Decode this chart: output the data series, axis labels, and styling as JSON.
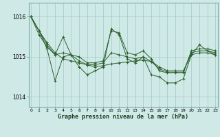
{
  "title": "Graphe pression niveau de la mer (hPa)",
  "bg_color": "#cfe9e7",
  "grid_color": "#a0c8c5",
  "line_color": "#2a5e2a",
  "spine_color": "#7aaba8",
  "xlim": [
    -0.5,
    23.5
  ],
  "ylim": [
    1013.75,
    1016.35
  ],
  "yticks": [
    1014,
    1015,
    1016
  ],
  "xticks": [
    0,
    1,
    2,
    3,
    4,
    5,
    6,
    7,
    8,
    9,
    10,
    11,
    12,
    13,
    14,
    15,
    16,
    17,
    18,
    19,
    20,
    21,
    22,
    23
  ],
  "series": [
    [
      1016.0,
      1015.65,
      1015.2,
      1014.4,
      1015.05,
      1015.05,
      1014.75,
      1014.6,
      1014.7,
      1014.8,
      1015.7,
      1015.55,
      1015.0,
      1014.95,
      1015.05,
      1014.6,
      1014.5,
      1014.4,
      1014.4,
      1014.5,
      1015.1,
      1015.35,
      1015.2,
      1015.1
    ],
    [
      1016.0,
      1015.65,
      1015.35,
      1015.05,
      1015.5,
      1015.05,
      1015.0,
      1014.85,
      1014.85,
      1014.9,
      1015.7,
      1015.6,
      1015.1,
      1015.05,
      1015.2,
      1015.0,
      1014.7,
      1014.65,
      1014.65,
      1014.65,
      1015.15,
      1015.2,
      1015.2,
      1015.15
    ],
    [
      1016.0,
      1015.5,
      1015.2,
      1015.0,
      1015.05,
      1015.05,
      1014.9,
      1014.8,
      1014.8,
      1014.85,
      1015.55,
      1015.45,
      1015.0,
      1015.0,
      1015.1,
      1014.9,
      1014.65,
      1014.6,
      1014.6,
      1014.6,
      1015.1,
      1015.15,
      1015.15,
      1015.1
    ],
    [
      1016.0,
      1015.5,
      1015.2,
      1015.0,
      1015.05,
      1015.05,
      1014.9,
      1014.8,
      1014.8,
      1014.85,
      1015.55,
      1015.45,
      1015.0,
      1015.0,
      1015.1,
      1014.9,
      1014.65,
      1014.6,
      1014.6,
      1014.6,
      1015.1,
      1015.15,
      1015.15,
      1015.1
    ]
  ]
}
